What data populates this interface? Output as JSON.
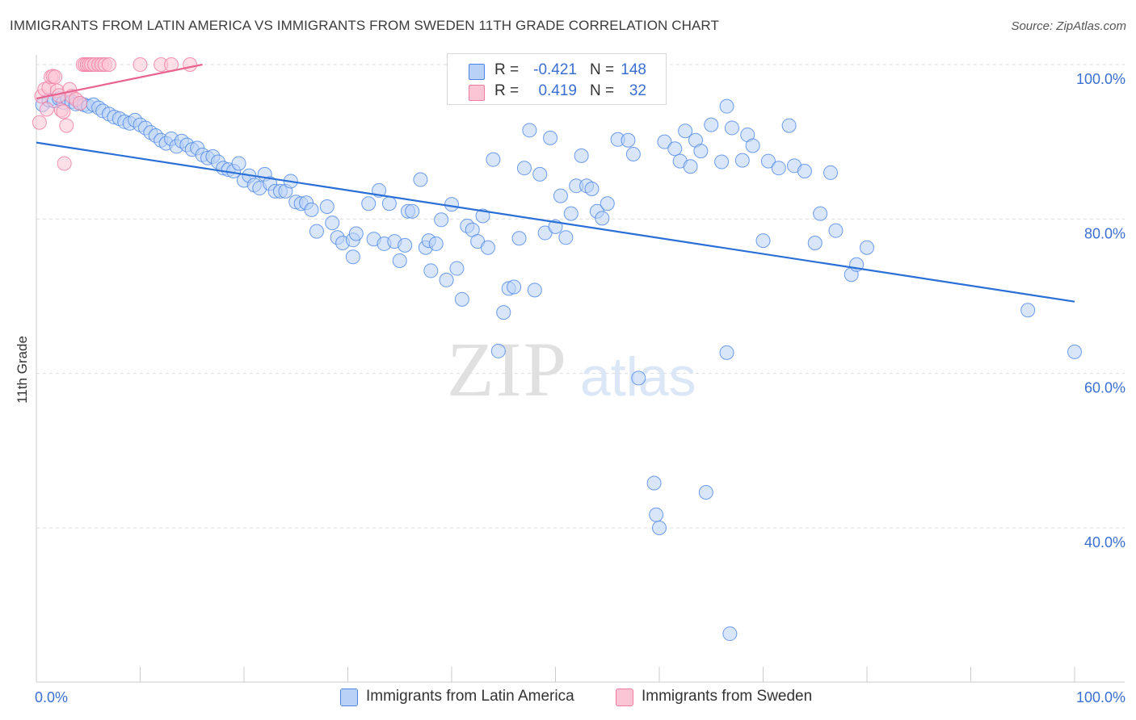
{
  "title": "IMMIGRANTS FROM LATIN AMERICA VS IMMIGRANTS FROM SWEDEN 11TH GRADE CORRELATION CHART",
  "source": "Source: ZipAtlas.com",
  "watermark": {
    "zip": "ZIP",
    "atlas": "atlas"
  },
  "colors": {
    "blue": "#4a86e8",
    "blue_fill": "#b9d1f5",
    "blue_line": "#2a6fd6",
    "pink": "#f07aa0",
    "pink_fill": "#fbc5d6",
    "pink_line": "#e8648f",
    "axis_text": "#3a6fd1",
    "grid": "#dcdcdc"
  },
  "legend": {
    "rows": [
      {
        "r_label": "R =",
        "r_value": "-0.421",
        "n_label": "N =",
        "n_value": "148"
      },
      {
        "r_label": "R =",
        "r_value": "0.419",
        "n_label": "N =",
        "n_value": "32"
      }
    ]
  },
  "bottom_legend": [
    {
      "label": "Immigrants from Latin America"
    },
    {
      "label": "Immigrants from Sweden"
    }
  ],
  "chart_data": {
    "type": "scatter",
    "title": "IMMIGRANTS FROM LATIN AMERICA VS IMMIGRANTS FROM SWEDEN 11TH GRADE CORRELATION CHART",
    "xlabel": "",
    "ylabel": "11th Grade",
    "xlim": [
      0,
      100
    ],
    "ylim": [
      18,
      102
    ],
    "x_tick_labels": [
      {
        "value": 0,
        "label": "0.0%"
      },
      {
        "value": 100,
        "label": "100.0%"
      }
    ],
    "y_tick_labels": [
      {
        "value": 100,
        "label": "100.0%"
      },
      {
        "value": 80,
        "label": "80.0%"
      },
      {
        "value": 60,
        "label": "60.0%"
      },
      {
        "value": 40,
        "label": "40.0%"
      }
    ],
    "grid": true,
    "legend_position": "top-center",
    "series": [
      {
        "name": "Immigrants from Latin America",
        "color": "#4a86e8",
        "trend": [
          [
            0,
            89.9
          ],
          [
            100,
            69.3
          ]
        ],
        "points": [
          [
            0.6,
            94.8
          ],
          [
            1.2,
            95.4
          ],
          [
            1.7,
            95.3
          ],
          [
            2.2,
            95.6
          ],
          [
            2.6,
            95.1
          ],
          [
            3.0,
            95.6
          ],
          [
            3.4,
            95.2
          ],
          [
            3.8,
            94.9
          ],
          [
            4.2,
            95.0
          ],
          [
            4.6,
            94.8
          ],
          [
            5.0,
            94.6
          ],
          [
            5.5,
            94.8
          ],
          [
            6.0,
            94.4
          ],
          [
            6.4,
            94.0
          ],
          [
            7.0,
            93.6
          ],
          [
            7.5,
            93.2
          ],
          [
            8.0,
            93.0
          ],
          [
            8.5,
            92.6
          ],
          [
            9.0,
            92.4
          ],
          [
            9.5,
            92.8
          ],
          [
            10.0,
            92.2
          ],
          [
            10.5,
            91.8
          ],
          [
            11.0,
            91.2
          ],
          [
            11.5,
            90.8
          ],
          [
            12.0,
            90.2
          ],
          [
            12.5,
            89.8
          ],
          [
            13.0,
            90.4
          ],
          [
            13.5,
            89.4
          ],
          [
            14.0,
            90.1
          ],
          [
            14.5,
            89.6
          ],
          [
            15.0,
            89.0
          ],
          [
            15.5,
            89.2
          ],
          [
            16.0,
            88.3
          ],
          [
            16.5,
            87.9
          ],
          [
            17.0,
            88.1
          ],
          [
            17.5,
            87.4
          ],
          [
            18.0,
            86.6
          ],
          [
            18.5,
            86.4
          ],
          [
            19.0,
            86.2
          ],
          [
            19.5,
            87.2
          ],
          [
            20.0,
            85.0
          ],
          [
            20.5,
            85.6
          ],
          [
            21.0,
            84.4
          ],
          [
            21.5,
            84.0
          ],
          [
            22.0,
            85.8
          ],
          [
            22.5,
            84.6
          ],
          [
            23.0,
            83.6
          ],
          [
            23.5,
            83.6
          ],
          [
            24.0,
            83.6
          ],
          [
            24.5,
            84.9
          ],
          [
            25.0,
            82.2
          ],
          [
            25.5,
            82.0
          ],
          [
            26.0,
            82.1
          ],
          [
            26.5,
            81.2
          ],
          [
            27.0,
            78.4
          ],
          [
            28.0,
            81.6
          ],
          [
            28.5,
            79.5
          ],
          [
            29.0,
            77.6
          ],
          [
            29.5,
            76.9
          ],
          [
            30.5,
            77.3
          ],
          [
            30.5,
            75.1
          ],
          [
            30.8,
            78.1
          ],
          [
            32.0,
            82.0
          ],
          [
            32.5,
            77.4
          ],
          [
            33.0,
            83.7
          ],
          [
            33.5,
            76.8
          ],
          [
            34.0,
            82.0
          ],
          [
            34.5,
            77.1
          ],
          [
            35.0,
            74.6
          ],
          [
            35.5,
            76.6
          ],
          [
            35.8,
            81.0
          ],
          [
            36.2,
            81.0
          ],
          [
            37.0,
            85.1
          ],
          [
            37.5,
            76.3
          ],
          [
            37.8,
            77.2
          ],
          [
            38.0,
            73.3
          ],
          [
            38.5,
            76.8
          ],
          [
            39.0,
            79.9
          ],
          [
            39.5,
            72.1
          ],
          [
            40.0,
            81.9
          ],
          [
            40.5,
            73.6
          ],
          [
            41.0,
            69.6
          ],
          [
            41.5,
            79.1
          ],
          [
            42.0,
            78.6
          ],
          [
            42.5,
            77.1
          ],
          [
            43.0,
            80.4
          ],
          [
            43.5,
            76.3
          ],
          [
            44.0,
            87.7
          ],
          [
            44.5,
            62.9
          ],
          [
            45.0,
            67.9
          ],
          [
            45.5,
            71.0
          ],
          [
            46.0,
            71.2
          ],
          [
            46.5,
            77.5
          ],
          [
            47.0,
            86.6
          ],
          [
            47.5,
            91.5
          ],
          [
            48.0,
            70.8
          ],
          [
            48.5,
            85.8
          ],
          [
            49.0,
            78.2
          ],
          [
            49.5,
            90.5
          ],
          [
            50.0,
            79.0
          ],
          [
            50.5,
            83.0
          ],
          [
            51.0,
            77.6
          ],
          [
            51.5,
            80.7
          ],
          [
            52.0,
            84.3
          ],
          [
            52.5,
            88.2
          ],
          [
            53.0,
            84.3
          ],
          [
            53.5,
            83.9
          ],
          [
            54.0,
            81.0
          ],
          [
            54.5,
            80.1
          ],
          [
            55.0,
            82.0
          ],
          [
            55.3,
            95.9
          ],
          [
            56.0,
            90.3
          ],
          [
            57.0,
            90.2
          ],
          [
            57.5,
            88.4
          ],
          [
            58.0,
            59.4
          ],
          [
            59.5,
            45.8
          ],
          [
            59.7,
            41.7
          ],
          [
            60.0,
            40.0
          ],
          [
            60.5,
            90.0
          ],
          [
            61.5,
            89.1
          ],
          [
            62.0,
            87.5
          ],
          [
            62.5,
            91.4
          ],
          [
            63.0,
            86.8
          ],
          [
            63.5,
            90.2
          ],
          [
            64.0,
            88.8
          ],
          [
            64.5,
            44.6
          ],
          [
            65.0,
            92.2
          ],
          [
            66.0,
            87.4
          ],
          [
            66.5,
            94.6
          ],
          [
            67.0,
            91.8
          ],
          [
            66.5,
            62.7
          ],
          [
            66.8,
            26.3
          ],
          [
            68.0,
            87.6
          ],
          [
            68.5,
            90.9
          ],
          [
            69.0,
            89.5
          ],
          [
            70.0,
            77.2
          ],
          [
            70.5,
            87.5
          ],
          [
            71.5,
            86.6
          ],
          [
            72.5,
            92.1
          ],
          [
            73.0,
            86.9
          ],
          [
            74.0,
            86.2
          ],
          [
            75.0,
            76.9
          ],
          [
            75.5,
            80.7
          ],
          [
            76.5,
            86.0
          ],
          [
            77.0,
            78.5
          ],
          [
            78.5,
            72.8
          ],
          [
            79.0,
            74.1
          ],
          [
            80.0,
            76.3
          ],
          [
            95.5,
            68.2
          ],
          [
            100.0,
            62.8
          ]
        ]
      },
      {
        "name": "Immigrants from Sweden",
        "color": "#f07aa0",
        "trend": [
          [
            0,
            95.6
          ],
          [
            16,
            100.0
          ]
        ],
        "points": [
          [
            0.3,
            92.5
          ],
          [
            0.5,
            95.9
          ],
          [
            0.8,
            96.8
          ],
          [
            1.0,
            94.2
          ],
          [
            1.2,
            97.0
          ],
          [
            1.4,
            98.4
          ],
          [
            1.6,
            98.5
          ],
          [
            1.8,
            98.4
          ],
          [
            2.0,
            96.6
          ],
          [
            2.2,
            96.0
          ],
          [
            2.4,
            94.1
          ],
          [
            2.6,
            93.9
          ],
          [
            2.7,
            87.2
          ],
          [
            2.9,
            92.1
          ],
          [
            3.2,
            96.8
          ],
          [
            3.4,
            95.9
          ],
          [
            3.8,
            95.5
          ],
          [
            4.2,
            95.0
          ],
          [
            4.5,
            100.0
          ],
          [
            4.7,
            100.0
          ],
          [
            4.9,
            100.0
          ],
          [
            5.1,
            100.0
          ],
          [
            5.3,
            100.0
          ],
          [
            5.6,
            100.0
          ],
          [
            6.0,
            100.0
          ],
          [
            6.3,
            100.0
          ],
          [
            6.6,
            100.0
          ],
          [
            7.0,
            100.0
          ],
          [
            10.0,
            100.0
          ],
          [
            12.0,
            100.0
          ],
          [
            13.0,
            100.0
          ],
          [
            14.8,
            100.0
          ]
        ]
      }
    ]
  }
}
